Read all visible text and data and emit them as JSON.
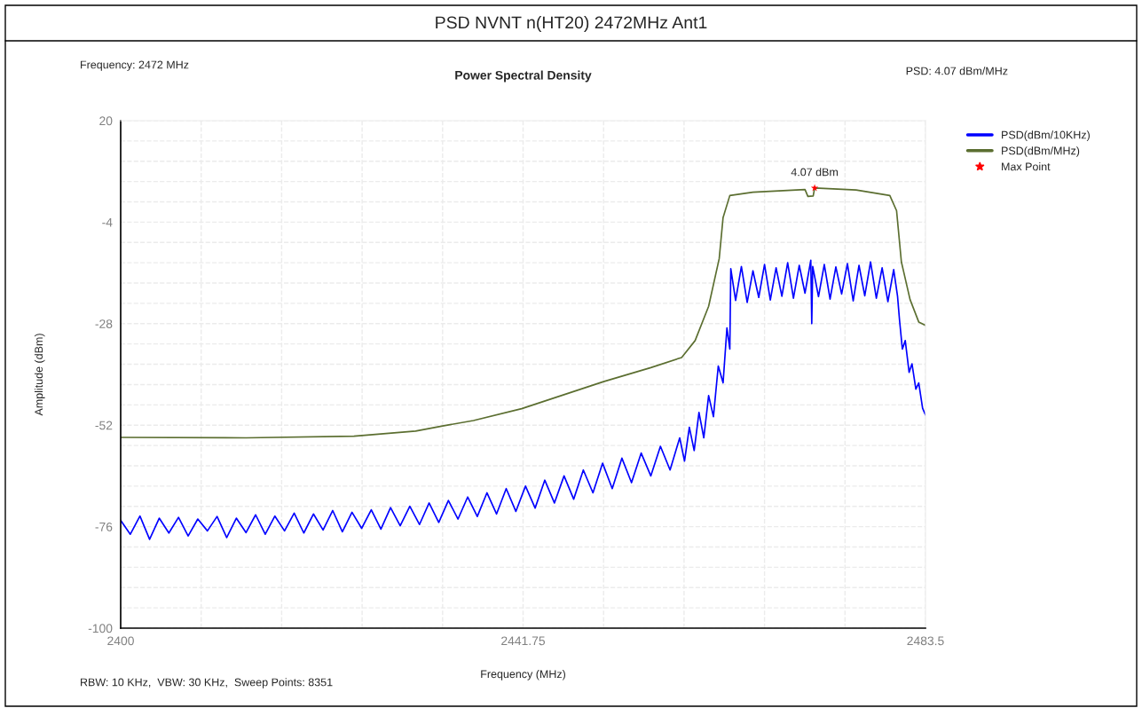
{
  "chart_data": {
    "type": "line",
    "title": "PSD NVNT n(HT20) 2472MHz Ant1",
    "subtitle": "Power Spectral Density",
    "xlabel": "Frequency (MHz)",
    "ylabel": "Amplitude (dBm)",
    "annotations": [
      "Frequency: 2472 MHz",
      "PSD: 4.07 dBm/MHz",
      "RBW: 10 KHz,  VBW: 30 KHz,  Sweep Points: 8351",
      {
        "text": "4.07 dBm",
        "x": 2472,
        "y": 4.07
      }
    ],
    "xlim": [
      2400,
      2483.5
    ],
    "ylim": [
      -100,
      20
    ],
    "xticks": [
      2400,
      {
        "value": 2408.35,
        "label": null
      },
      {
        "value": 2416.7,
        "label": null
      },
      {
        "value": 2425.05,
        "label": null
      },
      {
        "value": 2433.4,
        "label": null
      },
      2441.75,
      {
        "value": 2450.1,
        "label": null
      },
      {
        "value": 2458.45,
        "label": null
      },
      {
        "value": 2466.8,
        "label": null
      },
      {
        "value": 2475.15,
        "label": null
      },
      2483.5
    ],
    "yticks": [
      20,
      {
        "value": 15.2,
        "label": null
      },
      {
        "value": 10.4,
        "label": null
      },
      {
        "value": 5.6,
        "label": null
      },
      {
        "value": 0.8,
        "label": null
      },
      -4,
      {
        "value": -8.8,
        "label": null
      },
      {
        "value": -13.6,
        "label": null
      },
      {
        "value": -18.4,
        "label": null
      },
      {
        "value": -23.2,
        "label": null
      },
      -28,
      {
        "value": -32.8,
        "label": null
      },
      {
        "value": -37.6,
        "label": null
      },
      {
        "value": -42.4,
        "label": null
      },
      {
        "value": -47.2,
        "label": null
      },
      -52,
      {
        "value": -56.8,
        "label": null
      },
      {
        "value": -61.6,
        "label": null
      },
      {
        "value": -66.4,
        "label": null
      },
      {
        "value": -71.2,
        "label": null
      },
      -76,
      {
        "value": -80.8,
        "label": null
      },
      {
        "value": -85.6,
        "label": null
      },
      {
        "value": -90.4,
        "label": null
      },
      {
        "value": -95.2,
        "label": null
      },
      -100
    ],
    "grid": true,
    "legend": "top right",
    "series": [
      {
        "name": "PSD(dBm/10KHz)",
        "color": "#0000ff",
        "marker": "none",
        "x": [
          2400,
          2401,
          2402,
          2403,
          2404,
          2405,
          2406,
          2407,
          2408,
          2409,
          2410,
          2411,
          2412,
          2413,
          2414,
          2415,
          2416,
          2417,
          2418,
          2419,
          2420,
          2421,
          2422,
          2423,
          2424,
          2425,
          2426,
          2427,
          2428,
          2429,
          2430,
          2431,
          2432,
          2433,
          2434,
          2435,
          2436,
          2437,
          2438,
          2439,
          2440,
          2441,
          2442,
          2443,
          2444,
          2445,
          2446,
          2447,
          2448,
          2449,
          2450,
          2451,
          2452,
          2453,
          2454,
          2455,
          2456,
          2457,
          2458,
          2458.5,
          2459,
          2459.5,
          2460,
          2460.5,
          2461,
          2461.5,
          2462,
          2462.5,
          2462.9,
          2463.2,
          2463.3,
          2463.8,
          2464.4,
          2465.0,
          2465.6,
          2466.2,
          2466.8,
          2467.4,
          2468.0,
          2468.6,
          2469.2,
          2469.8,
          2470.4,
          2471.0,
          2471.6,
          2471.7,
          2471.8,
          2472.4,
          2473.0,
          2473.6,
          2474.2,
          2474.8,
          2475.4,
          2476.0,
          2476.6,
          2477.2,
          2477.8,
          2478.4,
          2479.0,
          2479.6,
          2480.2,
          2480.6,
          2480.8,
          2481.1,
          2481.4,
          2481.8,
          2482.1,
          2482.5,
          2482.8,
          2483.2,
          2483.5
        ],
        "values": [
          -74.5,
          -77.8,
          -73.5,
          -79.0,
          -74.0,
          -77.5,
          -73.8,
          -78.2,
          -74.2,
          -77.0,
          -73.6,
          -78.6,
          -74.0,
          -77.4,
          -73.2,
          -77.8,
          -73.5,
          -77.0,
          -72.8,
          -77.5,
          -73.0,
          -76.8,
          -72.2,
          -77.2,
          -72.6,
          -76.4,
          -72.0,
          -76.6,
          -71.5,
          -75.8,
          -71.2,
          -75.5,
          -70.4,
          -75.0,
          -69.8,
          -74.2,
          -69.0,
          -73.6,
          -68.0,
          -73.0,
          -67.0,
          -72.4,
          -66.4,
          -71.6,
          -65.0,
          -70.4,
          -64.0,
          -69.5,
          -62.6,
          -68.0,
          -61.0,
          -67.0,
          -59.8,
          -65.6,
          -58.6,
          -64.0,
          -57.0,
          -62.6,
          -55.0,
          -60.5,
          -52.5,
          -58.0,
          -49.0,
          -55.0,
          -45.0,
          -50.0,
          -38.0,
          -42.0,
          -29.0,
          -34.0,
          -15.0,
          -22.5,
          -14.5,
          -23.0,
          -15.5,
          -21.8,
          -14.0,
          -22.4,
          -14.8,
          -21.5,
          -13.6,
          -22.0,
          -14.2,
          -20.8,
          -13.0,
          -28.0,
          -14.5,
          -21.6,
          -14.0,
          -22.2,
          -14.6,
          -21.0,
          -13.8,
          -22.6,
          -14.2,
          -21.4,
          -13.4,
          -22.0,
          -14.8,
          -22.8,
          -15.2,
          -21.5,
          -27.0,
          -34.0,
          -32.0,
          -39.5,
          -37.5,
          -43.5,
          -42.0,
          -48.0,
          -49.6
        ]
      },
      {
        "name": "PSD(dBm/MHz)",
        "color": "#5b6e30",
        "marker": "none",
        "x": [
          2400,
          2413,
          2424.2,
          2430.6,
          2433.4,
          2436.6,
          2441.6,
          2450.1,
          2455.0,
          2458.2,
          2459.6,
          2461.0,
          2462.1,
          2462.5,
          2463.2,
          2465.6,
          2471.0,
          2471.3,
          2471.85,
          2472.0,
          2476.3,
          2479.8,
          2480.5,
          2481.0,
          2481.9,
          2482.8,
          2483.5
        ],
        "values": [
          -54.9,
          -55.0,
          -54.6,
          -53.4,
          -52.2,
          -50.9,
          -48.1,
          -41.7,
          -38.4,
          -36.0,
          -32.0,
          -23.9,
          -12.6,
          -2.9,
          2.3,
          3.1,
          3.7,
          2.1,
          2.2,
          4.07,
          3.6,
          2.3,
          -1.3,
          -13.4,
          -22.3,
          -27.6,
          -28.4
        ]
      },
      {
        "name": "Max Point",
        "color": "#ff0000",
        "type": "scatter",
        "marker": "star",
        "x": [
          2472
        ],
        "values": [
          4.07
        ]
      }
    ]
  }
}
